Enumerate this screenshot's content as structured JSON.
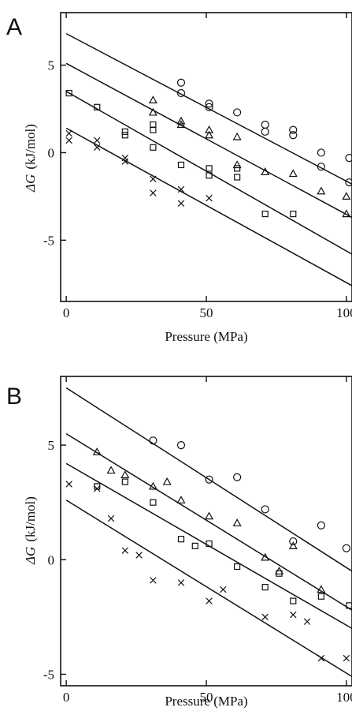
{
  "chart_data": [
    {
      "type": "scatter",
      "panel_label": "A",
      "xlabel": "Pressure (MPa)",
      "ylabel_symbol": "ΔG",
      "ylabel_unit": "(kJ/mol)",
      "xlim": [
        -2,
        102
      ],
      "ylim": [
        -8.5,
        8
      ],
      "xticks": [
        0,
        50,
        100
      ],
      "xtick_labels": [
        "0",
        "50",
        "100"
      ],
      "yticks": [
        5,
        0,
        -5
      ],
      "ytick_labels": [
        "5",
        "0",
        "-5"
      ],
      "grid": false,
      "series": [
        {
          "marker": "circle",
          "points": [
            [
              41,
              4.0
            ],
            [
              41,
              3.4
            ],
            [
              51,
              2.8
            ],
            [
              51,
              2.6
            ],
            [
              61,
              2.3
            ],
            [
              71,
              1.6
            ],
            [
              71,
              1.2
            ],
            [
              81,
              1.3
            ],
            [
              81,
              1.0
            ],
            [
              91,
              0.0
            ],
            [
              91,
              -0.8
            ],
            [
              101,
              -0.3
            ],
            [
              101,
              -1.7
            ]
          ],
          "fit": [
            [
              0,
              6.8
            ],
            [
              102,
              -1.8
            ]
          ]
        },
        {
          "marker": "triangle",
          "points": [
            [
              31,
              3.0
            ],
            [
              31,
              2.3
            ],
            [
              41,
              1.8
            ],
            [
              41,
              1.6
            ],
            [
              51,
              1.3
            ],
            [
              51,
              1.0
            ],
            [
              61,
              0.9
            ],
            [
              61,
              -0.7
            ],
            [
              71,
              -1.1
            ],
            [
              81,
              -1.2
            ],
            [
              91,
              -2.2
            ],
            [
              100,
              -2.5
            ],
            [
              100,
              -3.5
            ]
          ],
          "fit": [
            [
              0,
              5.1
            ],
            [
              102,
              -3.7
            ]
          ]
        },
        {
          "marker": "square",
          "points": [
            [
              1,
              3.4
            ],
            [
              11,
              2.6
            ],
            [
              21,
              1.2
            ],
            [
              21,
              1.0
            ],
            [
              31,
              1.6
            ],
            [
              31,
              1.3
            ],
            [
              31,
              0.3
            ],
            [
              41,
              -0.7
            ],
            [
              51,
              -0.9
            ],
            [
              51,
              -1.3
            ],
            [
              61,
              -0.9
            ],
            [
              61,
              -1.4
            ],
            [
              71,
              -3.5
            ],
            [
              81,
              -3.5
            ]
          ],
          "fit": [
            [
              0,
              3.5
            ],
            [
              102,
              -5.8
            ]
          ]
        },
        {
          "marker": "cross",
          "points": [
            [
              1,
              1.1
            ],
            [
              1,
              0.7
            ],
            [
              11,
              0.7
            ],
            [
              11,
              0.3
            ],
            [
              21,
              -0.3
            ],
            [
              21,
              -0.5
            ],
            [
              31,
              -1.5
            ],
            [
              31,
              -2.3
            ],
            [
              41,
              -2.1
            ],
            [
              41,
              -2.9
            ],
            [
              51,
              -2.6
            ]
          ],
          "fit": [
            [
              0,
              1.4
            ],
            [
              102,
              -7.6
            ]
          ]
        }
      ]
    },
    {
      "type": "scatter",
      "panel_label": "B",
      "xlabel": "Pressure (MPa)",
      "ylabel_symbol": "ΔG",
      "ylabel_unit": "(kJ/mol)",
      "xlim": [
        -2,
        102
      ],
      "ylim": [
        -5.5,
        8
      ],
      "xticks": [
        0,
        50,
        100
      ],
      "xtick_labels": [
        "0",
        "50",
        "100"
      ],
      "yticks": [
        5,
        0,
        -5
      ],
      "ytick_labels": [
        "5",
        "0",
        "-5"
      ],
      "grid": false,
      "series": [
        {
          "marker": "circle",
          "points": [
            [
              31,
              5.2
            ],
            [
              41,
              5.0
            ],
            [
              51,
              3.5
            ],
            [
              61,
              3.6
            ],
            [
              71,
              2.2
            ],
            [
              81,
              0.8
            ],
            [
              91,
              1.5
            ],
            [
              100,
              0.5
            ]
          ],
          "fit": [
            [
              0,
              7.5
            ],
            [
              102,
              -0.5
            ]
          ]
        },
        {
          "marker": "triangle",
          "points": [
            [
              11,
              4.7
            ],
            [
              16,
              3.9
            ],
            [
              21,
              3.7
            ],
            [
              31,
              3.2
            ],
            [
              36,
              3.4
            ],
            [
              41,
              2.6
            ],
            [
              51,
              1.9
            ],
            [
              61,
              1.6
            ],
            [
              71,
              0.1
            ],
            [
              76,
              -0.5
            ],
            [
              81,
              0.6
            ],
            [
              91,
              -1.3
            ]
          ],
          "fit": [
            [
              0,
              5.5
            ],
            [
              102,
              -2.2
            ]
          ]
        },
        {
          "marker": "square",
          "points": [
            [
              11,
              3.2
            ],
            [
              21,
              3.4
            ],
            [
              31,
              2.5
            ],
            [
              41,
              0.9
            ],
            [
              46,
              0.6
            ],
            [
              51,
              0.7
            ],
            [
              61,
              -0.3
            ],
            [
              71,
              -1.2
            ],
            [
              76,
              -0.6
            ],
            [
              81,
              -1.8
            ],
            [
              91,
              -1.6
            ],
            [
              101,
              -2.0
            ]
          ],
          "fit": [
            [
              0,
              4.2
            ],
            [
              102,
              -3.0
            ]
          ]
        },
        {
          "marker": "cross",
          "points": [
            [
              1,
              3.3
            ],
            [
              11,
              3.1
            ],
            [
              16,
              1.8
            ],
            [
              21,
              0.4
            ],
            [
              26,
              0.2
            ],
            [
              31,
              -0.9
            ],
            [
              41,
              -1.0
            ],
            [
              51,
              -1.8
            ],
            [
              56,
              -1.3
            ],
            [
              71,
              -2.5
            ],
            [
              81,
              -2.4
            ],
            [
              86,
              -2.7
            ],
            [
              91,
              -4.3
            ],
            [
              100,
              -4.3
            ]
          ],
          "fit": [
            [
              0,
              2.6
            ],
            [
              102,
              -5.1
            ]
          ]
        }
      ]
    }
  ]
}
